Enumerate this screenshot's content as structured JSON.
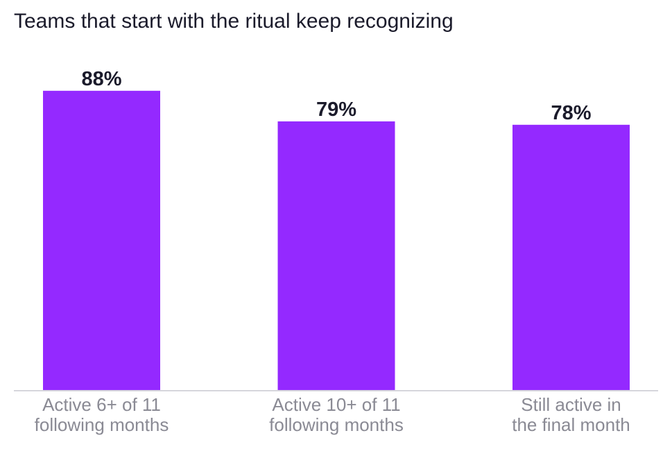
{
  "chart_data": {
    "type": "bar",
    "title": "Teams that start with the ritual keep recognizing",
    "xlabel": "",
    "ylabel": "",
    "categories": [
      [
        "Active 6+ of 11",
        "following months"
      ],
      [
        "Active 10+ of 11",
        "following months"
      ],
      [
        "Still active in",
        "the final month"
      ]
    ],
    "values": [
      88,
      79,
      78
    ],
    "value_labels": [
      "88%",
      "79%",
      "78%"
    ],
    "ylim": [
      0,
      100
    ],
    "grid": false,
    "legend": "none",
    "colors": {
      "bar": "#9429ff",
      "value_text": "#1b1b2b",
      "tick_text": "#8a8a94",
      "axis": "#d6d6dc"
    }
  }
}
